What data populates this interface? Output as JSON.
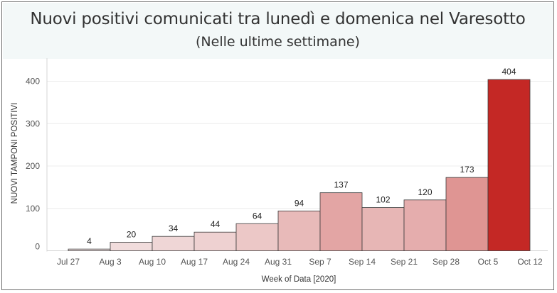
{
  "chart_data": {
    "type": "bar",
    "title": "Nuovi positivi comunicati tra lunedì e domenica nel Varesotto",
    "subtitle": "(Nelle ultime settimane)",
    "xlabel": "Week of Data [2020]",
    "ylabel": "NUOVI TAMPONI POSITIVI",
    "x_ticks": [
      "Jul 27",
      "Aug 3",
      "Aug 10",
      "Aug 17",
      "Aug 24",
      "Aug 31",
      "Sep 7",
      "Sep 14",
      "Sep 21",
      "Sep 28",
      "Oct 5",
      "Oct 12"
    ],
    "categories": [
      "Aug 3",
      "Aug 10",
      "Aug 17",
      "Aug 24",
      "Aug 31",
      "Sep 7",
      "Sep 14",
      "Sep 21",
      "Sep 28",
      "Oct 5",
      "Oct 12"
    ],
    "values": [
      4,
      20,
      34,
      44,
      64,
      94,
      137,
      102,
      120,
      173,
      404
    ],
    "y_ticks": [
      0,
      100,
      200,
      300,
      400
    ],
    "ylim": [
      0,
      440
    ],
    "grid": true,
    "bar_color_scale": [
      "#f3e4e4",
      "#c42825"
    ]
  }
}
